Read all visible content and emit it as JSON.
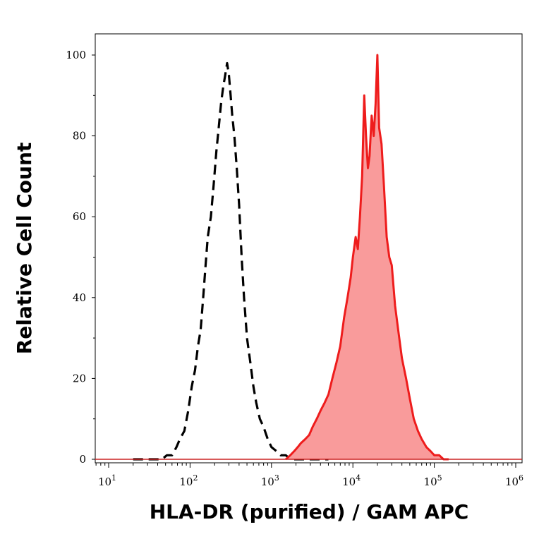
{
  "chart_data": {
    "type": "area",
    "xlabel": "HLA-DR (purified) / GAM APC",
    "ylabel": "Relative Cell Count",
    "x_scale": "log",
    "xlim": [
      6,
      1300000
    ],
    "ylim": [
      0,
      102
    ],
    "x_ticks": [
      {
        "base": "10",
        "exp": "1",
        "value": 10
      },
      {
        "base": "10",
        "exp": "2",
        "value": 100
      },
      {
        "base": "10",
        "exp": "3",
        "value": 1000
      },
      {
        "base": "10",
        "exp": "4",
        "value": 10000
      },
      {
        "base": "10",
        "exp": "5",
        "value": 100000
      },
      {
        "base": "10",
        "exp": "6",
        "value": 1000000
      }
    ],
    "y_ticks": [
      {
        "label": "0",
        "value": 0
      },
      {
        "label": "20",
        "value": 20
      },
      {
        "label": "40",
        "value": 40
      },
      {
        "label": "60",
        "value": 60
      },
      {
        "label": "80",
        "value": 80
      },
      {
        "label": "100",
        "value": 100
      }
    ],
    "grid": false,
    "series": [
      {
        "style": "dashed-black",
        "color": "#000000",
        "x": [
          20,
          28,
          38,
          45,
          52,
          60,
          68,
          75,
          85,
          95,
          105,
          115,
          125,
          135,
          145,
          155,
          165,
          180,
          195,
          210,
          225,
          240,
          255,
          270,
          285,
          300,
          315,
          330,
          350,
          375,
          400,
          430,
          460,
          500,
          550,
          600,
          650,
          720,
          800,
          900,
          1000,
          1150,
          1300,
          1500,
          1700,
          2000,
          2500,
          3500,
          5000
        ],
        "y": [
          0,
          0,
          0,
          0,
          1,
          1,
          3,
          5,
          7,
          12,
          18,
          22,
          28,
          32,
          40,
          48,
          55,
          60,
          68,
          76,
          82,
          88,
          92,
          95,
          98,
          95,
          90,
          85,
          80,
          72,
          63,
          50,
          40,
          30,
          24,
          18,
          14,
          10,
          8,
          5,
          3,
          2,
          1,
          1,
          0,
          0,
          0,
          0,
          0
        ]
      },
      {
        "style": "filled-red",
        "color": "#ee1c1c",
        "fill": "#f99b9b",
        "x": [
          1500,
          1700,
          1900,
          2100,
          2300,
          2600,
          2900,
          3200,
          3600,
          4000,
          4500,
          5000,
          5600,
          6300,
          7000,
          7800,
          8600,
          9400,
          10000,
          10800,
          11500,
          12200,
          13000,
          13800,
          14500,
          15300,
          16000,
          17000,
          18000,
          19000,
          20000,
          21000,
          22500,
          24000,
          26000,
          28000,
          30000,
          33000,
          36000,
          40000,
          45000,
          50000,
          56000,
          63000,
          70000,
          80000,
          90000,
          100000,
          115000,
          130000,
          150000
        ],
        "y": [
          0,
          1,
          2,
          3,
          4,
          5,
          6,
          8,
          10,
          12,
          14,
          16,
          20,
          24,
          28,
          35,
          40,
          45,
          50,
          55,
          52,
          60,
          70,
          90,
          80,
          72,
          75,
          85,
          80,
          88,
          100,
          82,
          78,
          68,
          55,
          50,
          48,
          38,
          32,
          25,
          20,
          15,
          10,
          7,
          5,
          3,
          2,
          1,
          1,
          0,
          0
        ]
      }
    ]
  }
}
